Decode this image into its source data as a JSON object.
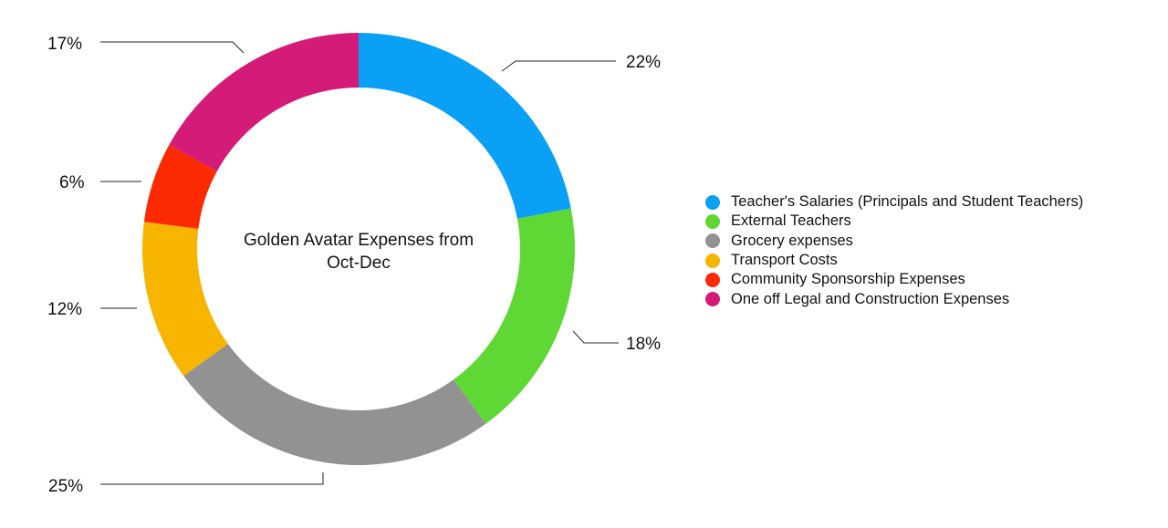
{
  "chart_data": {
    "type": "pie",
    "donut": true,
    "title": "Golden Avatar Expenses from Oct-Dec",
    "title_lines": [
      "Golden Avatar Expenses from",
      "Oct-Dec"
    ],
    "legend_position": "right",
    "slices": [
      {
        "name": "Teacher's Salaries (Principals and Student Teachers)",
        "value": 22,
        "label": "22%",
        "color": "#0aa0f6"
      },
      {
        "name": "External Teachers",
        "value": 18,
        "label": "18%",
        "color": "#5fd836"
      },
      {
        "name": "Grocery expenses",
        "value": 25,
        "label": "25%",
        "color": "#929292"
      },
      {
        "name": "Transport Costs",
        "value": 12,
        "label": "12%",
        "color": "#f7b500"
      },
      {
        "name": "Community Sponsorship Expenses",
        "value": 6,
        "label": "6%",
        "color": "#fb2a00"
      },
      {
        "name": "One off Legal and Construction Expenses",
        "value": 17,
        "label": "17%",
        "color": "#d41b77"
      }
    ]
  }
}
